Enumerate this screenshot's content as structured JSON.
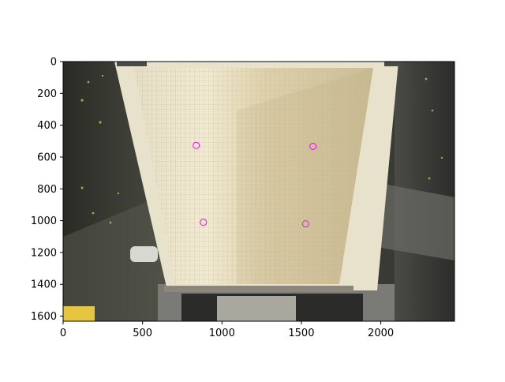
{
  "chart_data": {
    "type": "scatter",
    "title": "",
    "xlabel": "",
    "ylabel": "",
    "xlim": [
      0,
      2464
    ],
    "ylim": [
      1632,
      0
    ],
    "y_axis_inverted": true,
    "x_ticks": [
      0,
      500,
      1000,
      1500,
      2000
    ],
    "y_ticks": [
      0,
      200,
      400,
      600,
      800,
      1000,
      1200,
      1400,
      1600
    ],
    "background": "photograph of a wedge-shaped panel covered with a millimetre grid sheet mounted in a test fixture",
    "marker": "open circle",
    "marker_color": "#ff00ff",
    "series": [
      {
        "x": [
          838,
          1573,
          883,
          1527
        ],
        "y": [
          527,
          533,
          1010,
          1020
        ]
      }
    ]
  }
}
